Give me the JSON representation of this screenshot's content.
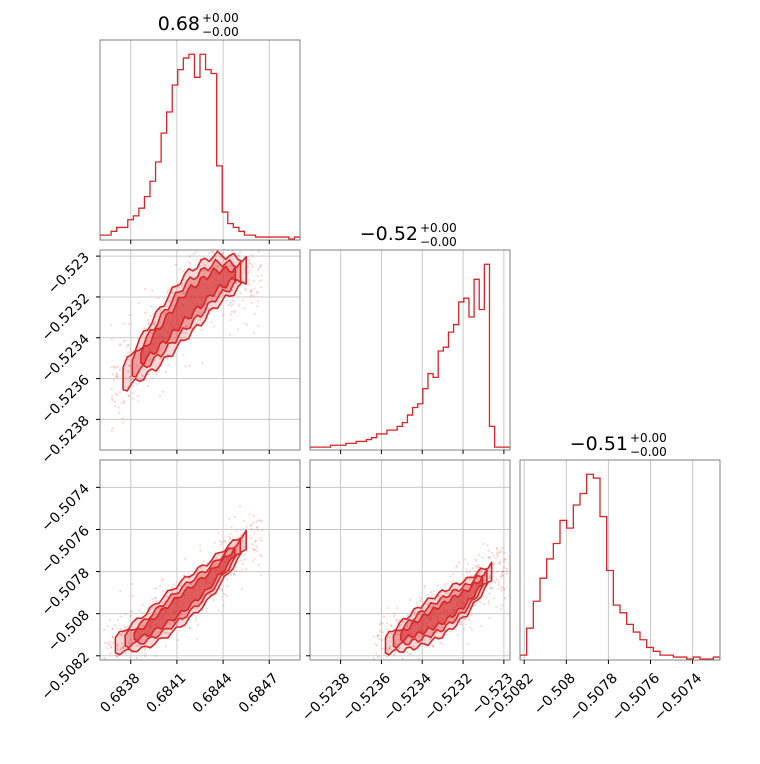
{
  "chart_data": [
    {
      "type": "histogram",
      "panel": "diag-0",
      "title_main": "0.68",
      "title_sup": "+0.00",
      "title_sub": "−0.00",
      "xlim": [
        0.6836,
        0.6849
      ],
      "xticks": [
        0.6838,
        0.6841,
        0.6844,
        0.6847
      ],
      "grid": true,
      "color": "#d62728",
      "bins_x_start": 0.6836,
      "bins_x_end": 0.6849,
      "counts": [
        2,
        2,
        4,
        6,
        6,
        10,
        12,
        16,
        22,
        30,
        40,
        55,
        66,
        80,
        88,
        94,
        96,
        84,
        96,
        88,
        86,
        38,
        14,
        8,
        6,
        4,
        2,
        2,
        1,
        1,
        1,
        1,
        1,
        1,
        0,
        1
      ]
    },
    {
      "type": "histogram",
      "panel": "diag-1",
      "title_main": "−0.52",
      "title_sup": "+0.00",
      "title_sub": "−0.00",
      "xlim": [
        -0.52395,
        -0.52297
      ],
      "xticks": [
        -0.5238,
        -0.5236,
        -0.5234,
        -0.5232,
        -0.523
      ],
      "grid": true,
      "color": "#d62728",
      "bins_x_start": -0.52395,
      "bins_x_end": -0.52297,
      "counts": [
        1,
        1,
        1,
        1,
        2,
        2,
        2,
        3,
        3,
        4,
        4,
        5,
        6,
        8,
        8,
        10,
        10,
        12,
        14,
        18,
        22,
        24,
        32,
        40,
        38,
        52,
        54,
        62,
        66,
        78,
        80,
        70,
        90,
        74,
        98,
        12,
        1,
        1,
        1
      ]
    },
    {
      "type": "histogram",
      "panel": "diag-2",
      "title_main": "−0.51",
      "title_sup": "+0.00",
      "title_sub": "−0.00",
      "xlim": [
        -0.50822,
        -0.50727
      ],
      "xticks": [
        -0.5082,
        -0.508,
        -0.5078,
        -0.5076,
        -0.5074
      ],
      "grid": true,
      "color": "#d62728",
      "bins_x_start": -0.50822,
      "bins_x_end": -0.50727,
      "counts": [
        2,
        16,
        30,
        42,
        52,
        60,
        72,
        68,
        80,
        86,
        96,
        94,
        74,
        46,
        28,
        24,
        18,
        14,
        10,
        6,
        4,
        2,
        2,
        1,
        1,
        0,
        1,
        0,
        0,
        1
      ]
    },
    {
      "type": "scatter-contour",
      "panel": "joint-1-0",
      "xlim": [
        0.6836,
        0.6849
      ],
      "ylim": [
        -0.52395,
        -0.52297
      ],
      "xticks": [
        0.6838,
        0.6841,
        0.6844,
        0.6847
      ],
      "yticks": [
        -0.523,
        -0.5232,
        -0.5234,
        -0.5236,
        -0.5238
      ],
      "grid": true,
      "color": "#d62728",
      "trend": {
        "x": [
          0.68375,
          0.68395,
          0.68415,
          0.68435,
          0.68455
        ],
        "y": [
          -0.5236,
          -0.52343,
          -0.52325,
          -0.52312,
          -0.52307
        ]
      },
      "spread_y": 0.00012
    },
    {
      "type": "scatter-contour",
      "panel": "joint-2-0",
      "xlim": [
        0.6836,
        0.6849
      ],
      "ylim": [
        -0.50822,
        -0.50727
      ],
      "xticks": [
        0.6838,
        0.6841,
        0.6844,
        0.6847
      ],
      "yticks": [
        -0.5074,
        -0.5076,
        -0.5078,
        -0.508,
        -0.5082
      ],
      "grid": true,
      "color": "#d62728",
      "trend": {
        "x": [
          0.6837,
          0.6839,
          0.6841,
          0.6843,
          0.68455
        ],
        "y": [
          -0.50815,
          -0.50808,
          -0.50797,
          -0.50785,
          -0.50765
        ]
      },
      "spread_y": 8e-05
    },
    {
      "type": "scatter-contour",
      "panel": "joint-2-1",
      "xlim": [
        -0.52395,
        -0.52297
      ],
      "ylim": [
        -0.50822,
        -0.50727
      ],
      "xticks": [
        -0.5238,
        -0.5236,
        -0.5234,
        -0.5232,
        -0.523
      ],
      "yticks": [],
      "grid": true,
      "color": "#d62728",
      "trend": {
        "x": [
          -0.52358,
          -0.52345,
          -0.5233,
          -0.52318,
          -0.52306
        ],
        "y": [
          -0.50815,
          -0.50808,
          -0.508,
          -0.50792,
          -0.5078
        ]
      },
      "spread_y": 8e-05
    }
  ]
}
